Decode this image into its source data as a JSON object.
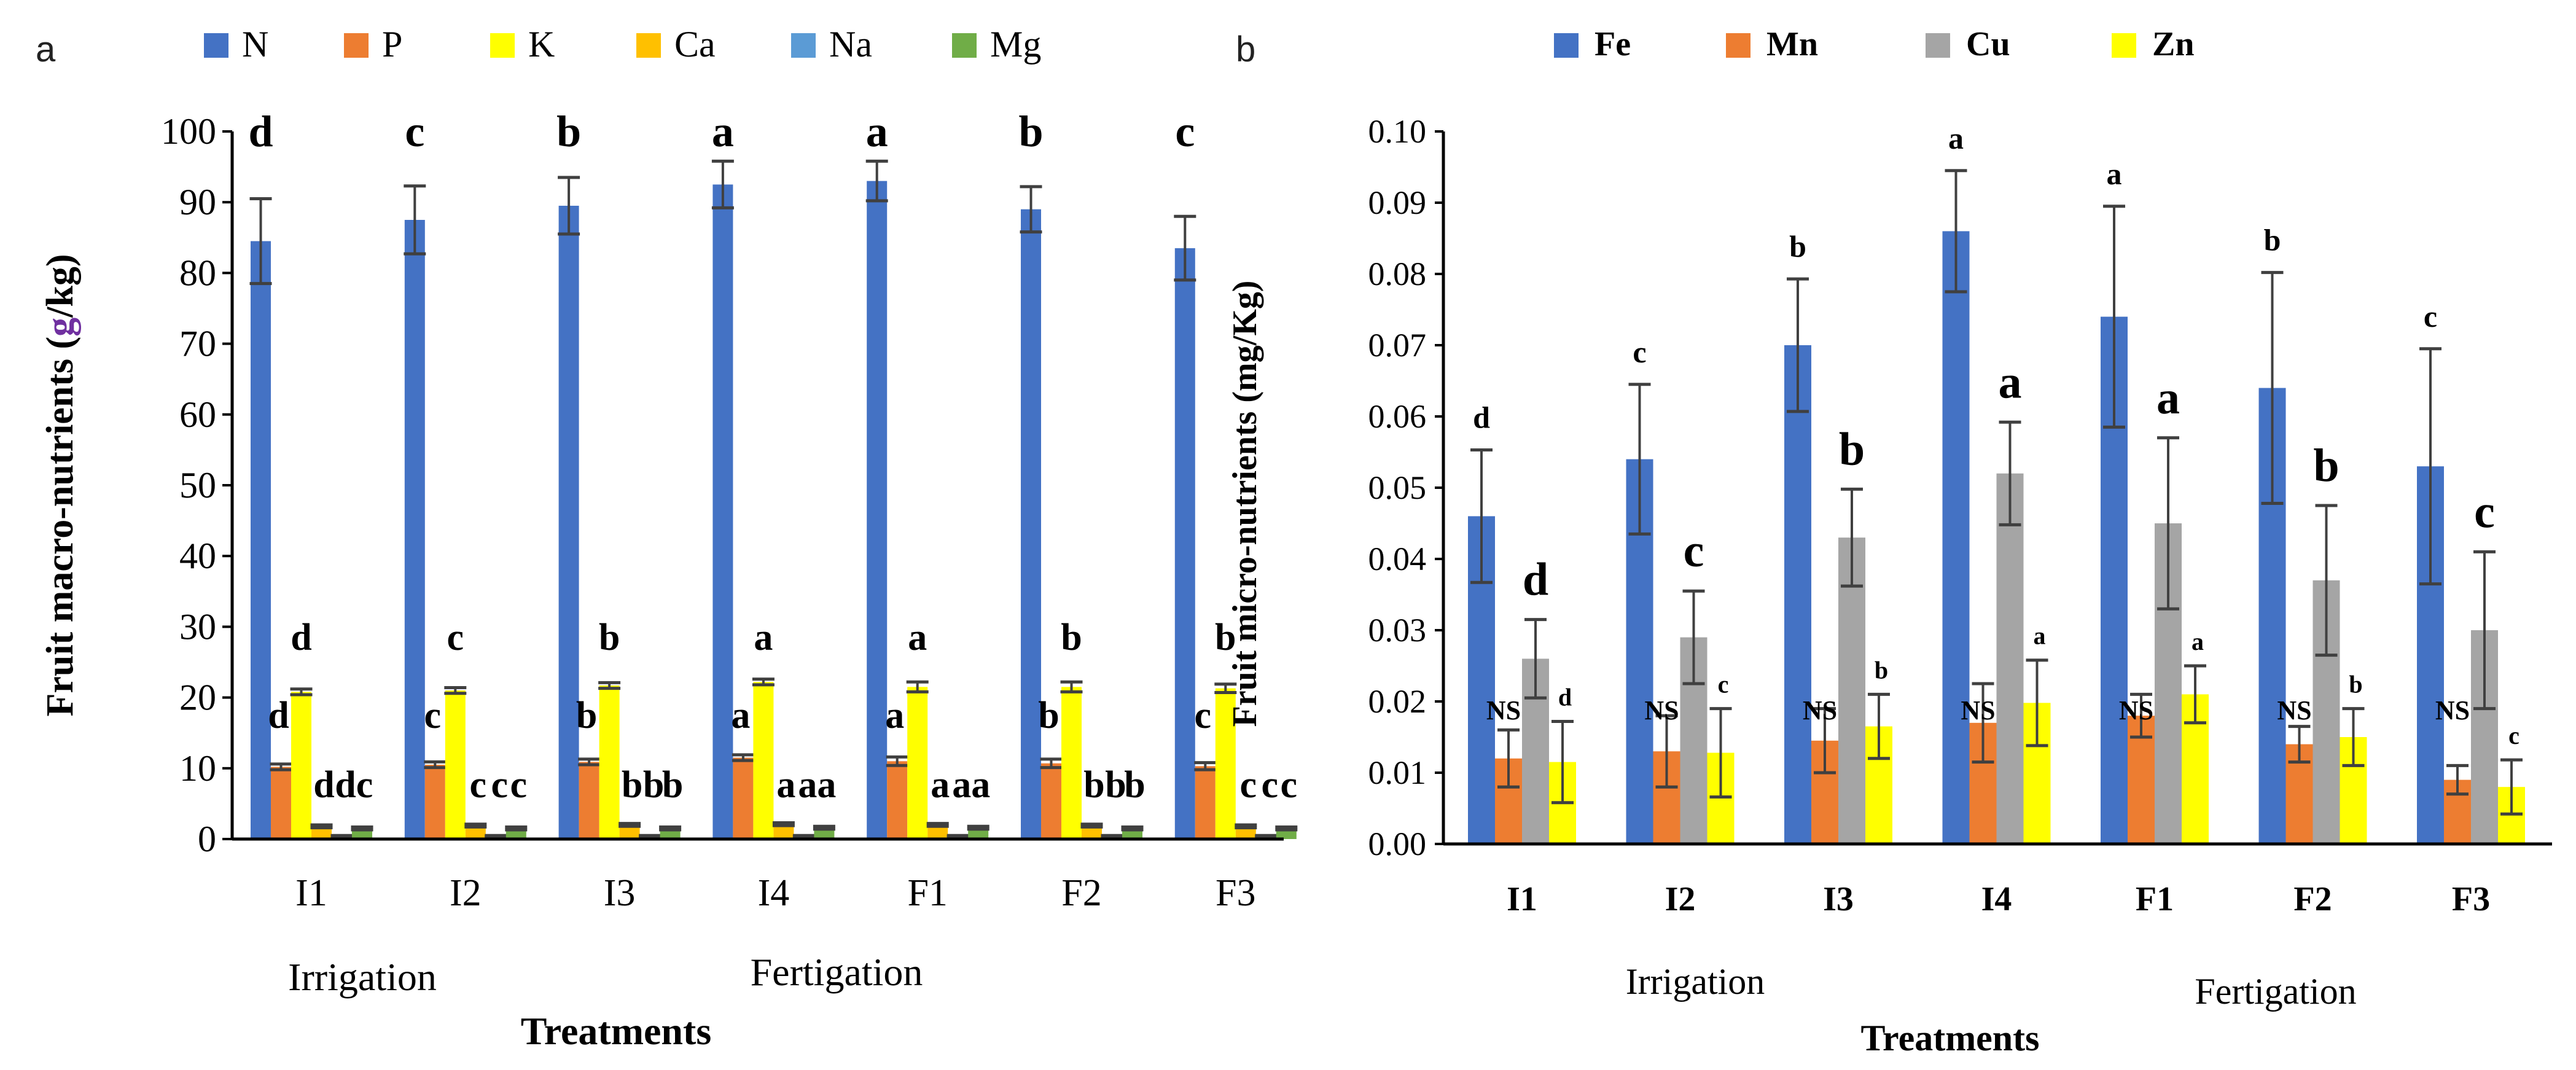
{
  "chart_data": [
    {
      "panel": "a",
      "type": "bar",
      "categories": [
        "I1",
        "I2",
        "I3",
        "I4",
        "F1",
        "F2",
        "F3"
      ],
      "group_labels": [
        "Irrigation",
        "Fertigation"
      ],
      "xlabel": "Treatments",
      "ylabel_parts": [
        "Fruit macro-nutrients (",
        "g",
        "/kg)"
      ],
      "ylabel_highlight_color": "#7030A0",
      "ylim": [
        0,
        100
      ],
      "yticks": [
        "0",
        "10",
        "20",
        "30",
        "40",
        "50",
        "60",
        "70",
        "80",
        "90",
        "100"
      ],
      "series": [
        {
          "name": "N",
          "color": "#4472C4",
          "values": [
            84.5,
            87.5,
            89.5,
            92.5,
            93.0,
            89.0,
            83.5
          ],
          "errors": [
            6.0,
            4.8,
            4.0,
            3.3,
            2.8,
            3.2,
            4.5
          ],
          "letters": [
            "d",
            "c",
            "b",
            "a",
            "a",
            "b",
            "c"
          ]
        },
        {
          "name": "P",
          "color": "#ED7D31",
          "values": [
            10.2,
            10.5,
            10.9,
            11.5,
            11.0,
            10.7,
            10.3
          ],
          "errors": [
            0.4,
            0.4,
            0.4,
            0.4,
            0.6,
            0.6,
            0.5
          ],
          "letters": [
            "d",
            "c",
            "b",
            "a",
            "a",
            "b",
            "c"
          ]
        },
        {
          "name": "K",
          "color": "#FFFF00",
          "values": [
            20.8,
            21.0,
            21.7,
            22.2,
            21.5,
            21.5,
            21.3
          ],
          "errors": [
            0.4,
            0.4,
            0.4,
            0.4,
            0.7,
            0.7,
            0.6
          ],
          "letters": [
            "d",
            "c",
            "b",
            "a",
            "a",
            "b",
            "b"
          ]
        },
        {
          "name": "Ca",
          "color": "#FFC000",
          "values": [
            1.8,
            1.9,
            2.0,
            2.1,
            2.0,
            1.9,
            1.8
          ],
          "errors": [
            0.2,
            0.2,
            0.2,
            0.2,
            0.2,
            0.2,
            0.2
          ],
          "letters": [
            "d",
            "c",
            "b",
            "a",
            "a",
            "b",
            "c"
          ]
        },
        {
          "name": "Na",
          "color": "#5B9BD5",
          "values": [
            0.4,
            0.4,
            0.4,
            0.4,
            0.4,
            0.4,
            0.4
          ],
          "errors": [
            0.1,
            0.1,
            0.1,
            0.1,
            0.1,
            0.1,
            0.1
          ],
          "letters": [
            "d",
            "c",
            "b",
            "a",
            "a",
            "b",
            "c"
          ]
        },
        {
          "name": "Mg",
          "color": "#70AD47",
          "values": [
            1.5,
            1.5,
            1.5,
            1.6,
            1.6,
            1.5,
            1.5
          ],
          "errors": [
            0.2,
            0.2,
            0.2,
            0.2,
            0.2,
            0.2,
            0.2
          ],
          "letters": [
            "c",
            "c",
            "b",
            "a",
            "a",
            "b",
            "c"
          ]
        }
      ]
    },
    {
      "panel": "b",
      "type": "bar",
      "categories": [
        "I1",
        "I2",
        "I3",
        "I4",
        "F1",
        "F2",
        "F3"
      ],
      "group_labels": [
        "Irrigation",
        "Fertigation"
      ],
      "xlabel": "Treatments",
      "ylabel": "Fruit micro-nutrients (mg/Kg)",
      "ylim": [
        0,
        0.1
      ],
      "yticks": [
        "0.00",
        "0.01",
        "0.02",
        "0.03",
        "0.04",
        "0.05",
        "0.06",
        "0.07",
        "0.08",
        "0.09",
        "0.10"
      ],
      "series": [
        {
          "name": "Fe",
          "color": "#4472C4",
          "values": [
            0.046,
            0.054,
            0.07,
            0.086,
            0.074,
            0.064,
            0.053
          ],
          "errors": [
            0.0093,
            0.0105,
            0.0093,
            0.0085,
            0.0155,
            0.0162,
            0.0165
          ],
          "letters": [
            "d",
            "c",
            "b",
            "a",
            "a",
            "b",
            "c"
          ]
        },
        {
          "name": "Mn",
          "color": "#ED7D31",
          "values": [
            0.012,
            0.013,
            0.0145,
            0.017,
            0.018,
            0.014,
            0.009
          ],
          "errors": [
            0.004,
            0.005,
            0.0045,
            0.0055,
            0.003,
            0.0025,
            0.002
          ],
          "letters": [
            "NS",
            "NS",
            "NS",
            "NS",
            "NS",
            "NS",
            "NS"
          ]
        },
        {
          "name": "Cu",
          "color": "#A5A5A5",
          "values": [
            0.026,
            0.029,
            0.043,
            0.052,
            0.045,
            0.037,
            0.03
          ],
          "errors": [
            0.0055,
            0.0065,
            0.0068,
            0.0072,
            0.012,
            0.0105,
            0.011
          ],
          "letters": [
            "d",
            "c",
            "b",
            "a",
            "a",
            "b",
            "c"
          ]
        },
        {
          "name": "Zn",
          "color": "#FFFF00",
          "values": [
            0.0115,
            0.0128,
            0.0165,
            0.0198,
            0.021,
            0.015,
            0.008
          ],
          "errors": [
            0.0057,
            0.0062,
            0.0045,
            0.006,
            0.004,
            0.004,
            0.0038
          ],
          "letters": [
            "d",
            "c",
            "b",
            "a",
            "a",
            "b",
            "c"
          ]
        }
      ]
    }
  ]
}
